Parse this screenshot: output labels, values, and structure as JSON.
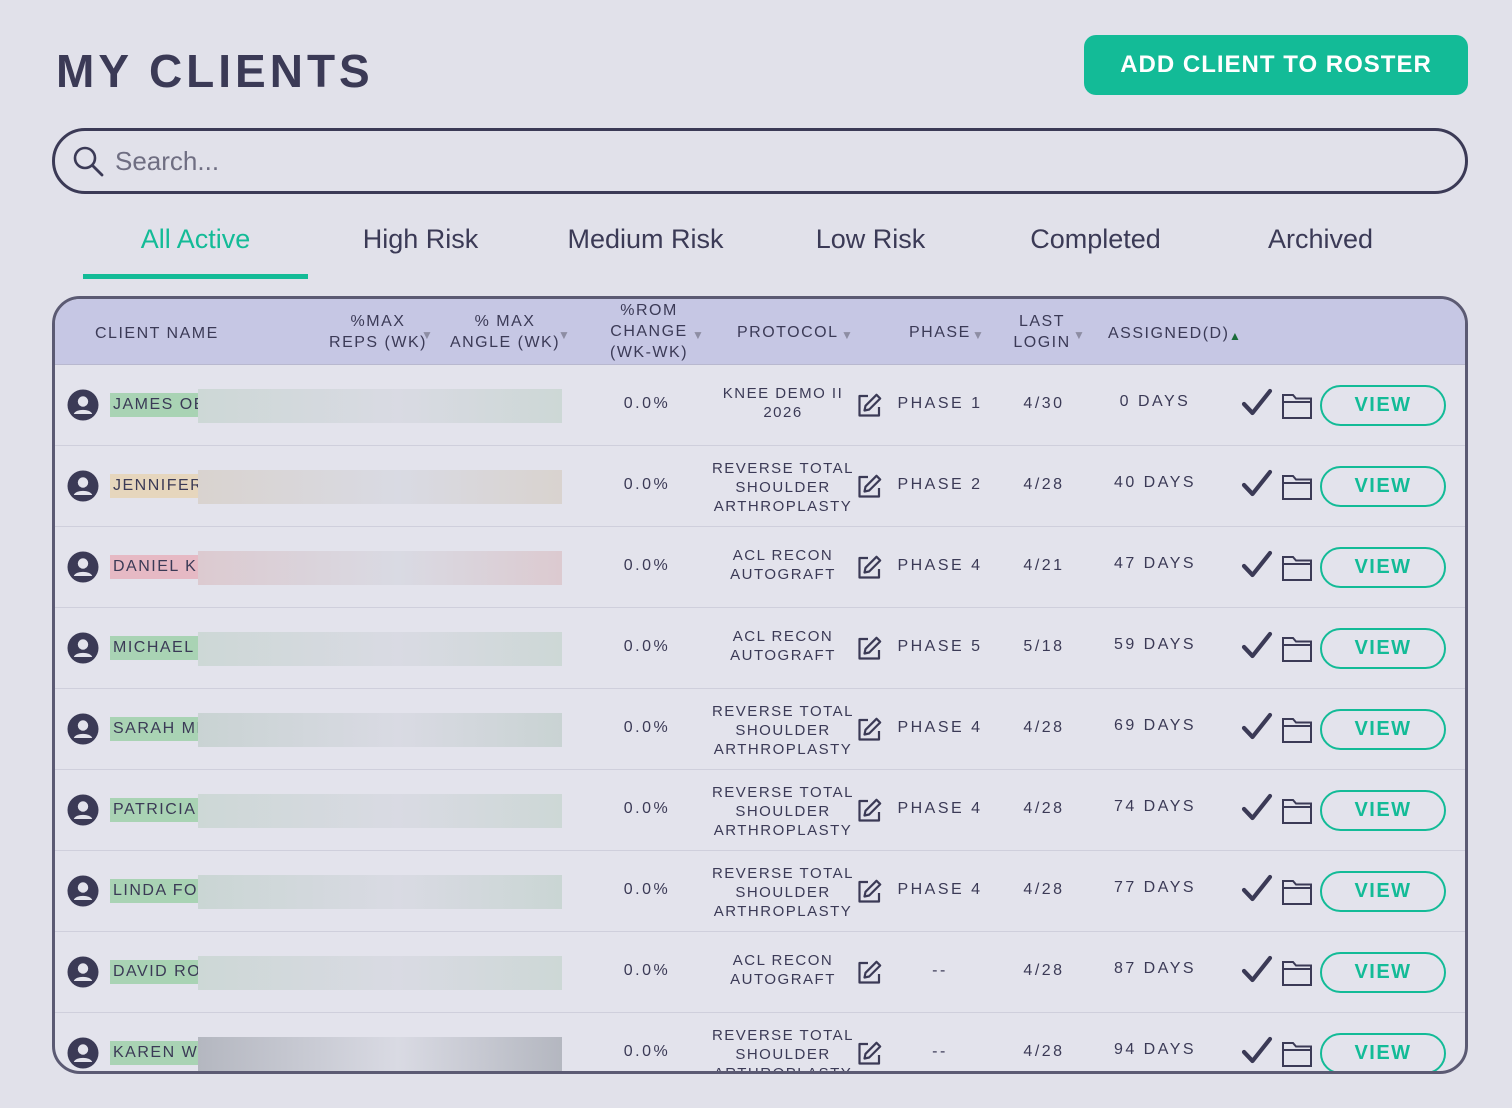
{
  "page": {
    "title": "MY CLIENTS",
    "add_button": "ADD CLIENT TO ROSTER",
    "search_placeholder": "Search...",
    "accent_color": "#13bb97"
  },
  "tabs": [
    {
      "label": "All Active",
      "active": true
    },
    {
      "label": "High Risk"
    },
    {
      "label": "Medium Risk"
    },
    {
      "label": "Low Risk"
    },
    {
      "label": "Completed"
    },
    {
      "label": "Archived"
    }
  ],
  "table": {
    "columns": {
      "client_name": "CLIENT NAME",
      "max_reps_1": "%MAX",
      "max_reps_2": "REPS (WK)",
      "max_angle_1": "% MAX",
      "max_angle_2": "ANGLE (WK)",
      "rom_1": "%ROM",
      "rom_2": "CHANGE",
      "rom_3": "(WK-WK)",
      "protocol": "PROTOCOL",
      "phase": "PHASE",
      "last_login_1": "LAST",
      "last_login_2": "LOGIN",
      "assigned": "ASSIGNED(D)"
    },
    "sort_icon": "▼",
    "sort_active_icon": "▲",
    "view_label": "VIEW",
    "rows": [
      {
        "name": "JAMES OE",
        "tag_color": "#a9d3b4",
        "redact_color": "#cdd8d6",
        "rom": "0.0%",
        "protocol_lines": [
          "KNEE DEMO II",
          "2026"
        ],
        "phase": "PHASE 1",
        "login": "4/30",
        "days": "0 DAYS"
      },
      {
        "name": "JENNIFER",
        "tag_color": "#e6d6bd",
        "redact_color": "#d9d3cf",
        "rom": "0.0%",
        "protocol_lines": [
          "REVERSE TOTAL",
          "SHOULDER",
          "ARTHROPLASTY"
        ],
        "phase": "PHASE 2",
        "login": "4/28",
        "days": "40 DAYS"
      },
      {
        "name": "DANIEL K",
        "tag_color": "#e6b9c4",
        "redact_color": "#dccad0",
        "rom": "0.0%",
        "protocol_lines": [
          "ACL RECON",
          "AUTOGRAFT"
        ],
        "phase": "PHASE 4",
        "login": "4/21",
        "days": "47 DAYS"
      },
      {
        "name": "MICHAEL",
        "tag_color": "#a9d3b4",
        "redact_color": "#cdd8d6",
        "rom": "0.0%",
        "protocol_lines": [
          "ACL RECON",
          "AUTOGRAFT"
        ],
        "phase": "PHASE 5",
        "login": "5/18",
        "days": "59 DAYS"
      },
      {
        "name": "SARAH MI",
        "tag_color": "#a9d3b4",
        "redact_color": "#c9d3d3",
        "rom": "0.0%",
        "protocol_lines": [
          "REVERSE TOTAL",
          "SHOULDER",
          "ARTHROPLASTY"
        ],
        "phase": "PHASE 4",
        "login": "4/28",
        "days": "69 DAYS"
      },
      {
        "name": "PATRICIA",
        "tag_color": "#a9d3b4",
        "redact_color": "#cdd8d6",
        "rom": "0.0%",
        "protocol_lines": [
          "REVERSE TOTAL",
          "SHOULDER",
          "ARTHROPLASTY"
        ],
        "phase": "PHASE 4",
        "login": "4/28",
        "days": "74 DAYS"
      },
      {
        "name": "LINDA FO",
        "tag_color": "#a9d3b4",
        "redact_color": "#cad6d4",
        "rom": "0.0%",
        "protocol_lines": [
          "REVERSE TOTAL",
          "SHOULDER",
          "ARTHROPLASTY"
        ],
        "phase": "PHASE 4",
        "login": "4/28",
        "days": "77 DAYS"
      },
      {
        "name": "DAVID RO",
        "tag_color": "#a9d3b4",
        "redact_color": "#cdd8d6",
        "rom": "0.0%",
        "protocol_lines": [
          "ACL RECON",
          "AUTOGRAFT"
        ],
        "phase": "--",
        "login": "4/28",
        "days": "87 DAYS"
      },
      {
        "name": "KAREN W",
        "tag_color": "#a9d3b4",
        "redact_color": "#b4b7c0",
        "rom": "0.0%",
        "protocol_lines": [
          "REVERSE TOTAL",
          "SHOULDER",
          "ARTHROPLASTY"
        ],
        "phase": "--",
        "login": "4/28",
        "days": "94 DAYS"
      }
    ]
  }
}
